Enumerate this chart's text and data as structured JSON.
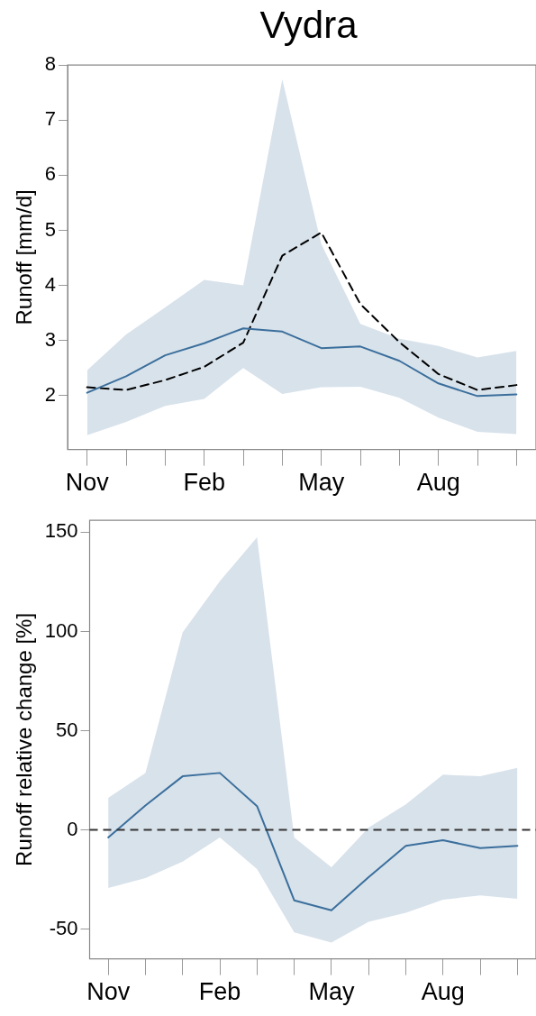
{
  "chart_data": [
    {
      "type": "line",
      "title": "Vydra",
      "ylabel": "Runoff [mm/d]",
      "categories": [
        "Nov",
        null,
        null,
        "Feb",
        null,
        null,
        "May",
        null,
        null,
        "Aug",
        null,
        null
      ],
      "ylim": [
        1.02,
        8
      ],
      "yticks": [
        2,
        3,
        4,
        5,
        6,
        7,
        8
      ],
      "grid": false,
      "legend": false,
      "marker": "none",
      "series": [
        {
          "color": "#3b6f9c",
          "line_style": "solid",
          "values": [
            2.05,
            2.35,
            2.73,
            2.95,
            3.22,
            3.16,
            2.86,
            2.89,
            2.63,
            2.22,
            1.99,
            2.02
          ],
          "lower": [
            1.28,
            1.52,
            1.81,
            1.94,
            2.5,
            2.03,
            2.15,
            2.16,
            1.96,
            1.6,
            1.34,
            1.3
          ],
          "upper": [
            2.46,
            3.11,
            3.6,
            4.1,
            4.0,
            7.74,
            4.75,
            3.3,
            3.03,
            2.9,
            2.69,
            2.81
          ]
        },
        {
          "color": "#000000",
          "line_style": "dashed",
          "values": [
            2.15,
            2.1,
            2.28,
            2.52,
            2.96,
            4.54,
            4.96,
            3.66,
            2.97,
            2.39,
            2.1,
            2.19
          ]
        }
      ]
    },
    {
      "type": "line",
      "ylabel": "Runoff relative change [%]",
      "categories": [
        "Nov",
        null,
        null,
        "Feb",
        null,
        null,
        "May",
        null,
        null,
        "Aug",
        null,
        null
      ],
      "ylim": [
        -65,
        156
      ],
      "yticks": [
        -50,
        0,
        50,
        100,
        150
      ],
      "grid": false,
      "legend": false,
      "marker": "none",
      "ref_lines": [
        {
          "axis": "y",
          "value": 0,
          "color": "#333333",
          "line_style": "dashed"
        }
      ],
      "series": [
        {
          "color": "#3b6f9c",
          "line_style": "solid",
          "values": [
            -3.8,
            12.3,
            27,
            28.7,
            12,
            -35.5,
            -40.5,
            -23.8,
            -8,
            -5.2,
            -9.2,
            -8
          ],
          "lower": [
            -29.3,
            -24.3,
            -16,
            -3.8,
            -19.7,
            -51.7,
            -56.8,
            -46.3,
            -41.8,
            -35.2,
            -33,
            -34.7
          ],
          "upper": [
            16.2,
            28.7,
            99.5,
            125.3,
            147.5,
            -3.8,
            -18.8,
            1.2,
            12.8,
            27.8,
            27,
            31.2
          ]
        }
      ]
    }
  ]
}
